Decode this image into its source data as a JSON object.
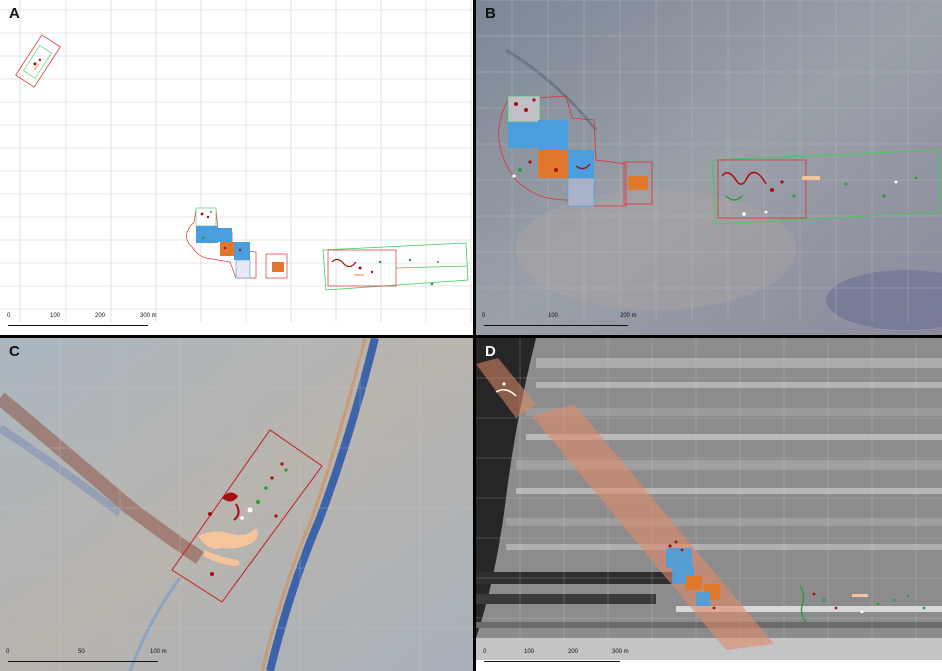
{
  "panels": [
    {
      "id": "A",
      "label": "A",
      "scale": {
        "ticks": [
          "0",
          "100",
          "200",
          "300 m"
        ]
      }
    },
    {
      "id": "B",
      "label": "B",
      "scale": {
        "ticks": [
          "0",
          "100",
          "200 m"
        ]
      }
    },
    {
      "id": "C",
      "label": "C",
      "scale": {
        "ticks": [
          "0",
          "50",
          "100 m"
        ]
      }
    },
    {
      "id": "D",
      "label": "D",
      "scale": {
        "ticks": [
          "0",
          "100",
          "200",
          "300 m"
        ]
      }
    }
  ],
  "colors": {
    "survey_outline_red": "#e03030",
    "survey_outline_green": "#3bcf55",
    "feature_dark_red": "#a80e0e",
    "feature_blue": "#4a9ede",
    "feature_orange": "#e0772a",
    "feature_peach": "#f6c49a",
    "feature_green": "#2f9a3a",
    "transect_band": "#e08a6a",
    "grid": "#c8c8c8"
  }
}
